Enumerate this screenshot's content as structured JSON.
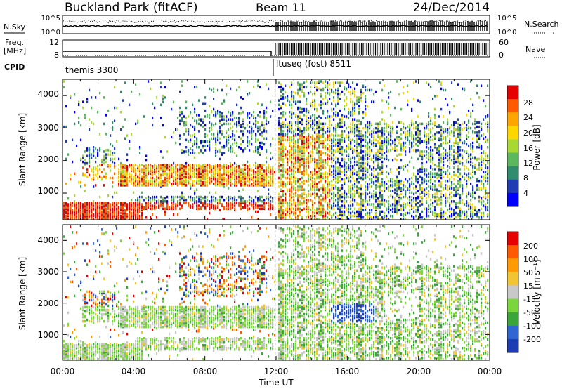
{
  "header": {
    "station": "Buckland Park (fitACF)",
    "beam": "Beam 11",
    "date": "24/Dec/2014"
  },
  "noise_panel": {
    "left_label": "N.Sky",
    "right_label": "N.Search",
    "left_ticks": [
      "10^5",
      "10^0"
    ],
    "right_ticks": [
      "10^5",
      "10^0"
    ]
  },
  "freq_panel": {
    "left_label_line1": "Freq.",
    "left_label_line2": "[MHz]",
    "left_ticks": [
      "12",
      "8"
    ],
    "right_label": "Nave",
    "right_ticks": [
      "60",
      "0"
    ]
  },
  "cpid": {
    "label": "CPID",
    "segments": [
      {
        "name": "themis 3300",
        "start_hour": 0,
        "end_hour": 11.9
      },
      {
        "name": "ltuseq (fost) 8511",
        "start_hour": 12,
        "end_hour": 24
      }
    ]
  },
  "colors": {
    "power_scale": [
      "#0000ff",
      "#1e3cb4",
      "#2f8c6e",
      "#5cb85c",
      "#a8d832",
      "#ffd700",
      "#ffa500",
      "#ff5a00",
      "#e60000"
    ],
    "velocity_scale": [
      "#1e3cb4",
      "#2f66d1",
      "#3aa63a",
      "#7ad63a",
      "#c8c8c8",
      "#f2c431",
      "#ff9a00",
      "#ff5a00",
      "#e60000"
    ]
  },
  "chart_data": [
    {
      "type": "heatmap",
      "title": "",
      "ylabel": "Slant Range [km]",
      "xlabel": "",
      "ylim": [
        180,
        4500
      ],
      "xlim": [
        0,
        24
      ],
      "y_ticks": [
        "4000",
        "3000",
        "2000",
        "1000"
      ],
      "colorbar_label": "Power [dB]",
      "colorbar_ticks": [
        "28",
        "24",
        "20",
        "16",
        "12",
        "8",
        "4"
      ],
      "colorbar_range": [
        0,
        32
      ]
    },
    {
      "type": "heatmap",
      "title": "",
      "ylabel": "Slant Range [km]",
      "xlabel": "Time UT",
      "ylim": [
        180,
        4500
      ],
      "xlim": [
        0,
        24
      ],
      "x_ticks": [
        "00:00",
        "04:00",
        "08:00",
        "12:00",
        "16:00",
        "20:00",
        "00:00"
      ],
      "y_ticks": [
        "4000",
        "3000",
        "2000",
        "1000"
      ],
      "colorbar_label": "Velocity [m s⁻¹]",
      "colorbar_ticks": [
        "200",
        "100",
        "50",
        "15",
        "-15",
        "-50",
        "-100",
        "-200"
      ],
      "colorbar_range": [
        -250,
        250
      ]
    }
  ]
}
